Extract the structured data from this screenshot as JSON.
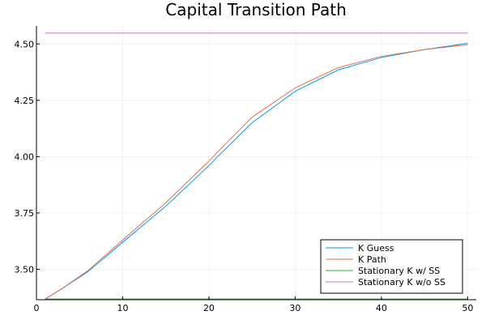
{
  "chart_data": {
    "type": "line",
    "title": "Capital Transition Path",
    "xlabel": "",
    "ylabel": "",
    "xlim": [
      0,
      51
    ],
    "ylim": [
      3.365,
      4.58
    ],
    "x_ticks": [
      0,
      10,
      20,
      30,
      40,
      50
    ],
    "y_ticks": [
      3.5,
      3.75,
      4.0,
      4.25,
      4.5
    ],
    "x_tick_labels": [
      "0",
      "10",
      "20",
      "30",
      "40",
      "50"
    ],
    "y_tick_labels": [
      "3.50",
      "3.75",
      "4.00",
      "4.25",
      "4.50"
    ],
    "grid": true,
    "legend_position": "bottom-right",
    "x": [
      1,
      3,
      6,
      10,
      15,
      20,
      21,
      25,
      30,
      35,
      40,
      45,
      50
    ],
    "series": [
      {
        "name": "K Guess",
        "color": "#009AFA",
        "values": [
          3.368,
          3.415,
          3.49,
          3.62,
          3.78,
          3.96,
          4.0,
          4.15,
          4.29,
          4.385,
          4.44,
          4.475,
          4.503
        ]
      },
      {
        "name": "K Path",
        "color": "#E26F46",
        "values": [
          3.368,
          3.415,
          3.495,
          3.63,
          3.795,
          3.98,
          4.02,
          4.175,
          4.305,
          4.395,
          4.445,
          4.475,
          4.497
        ]
      },
      {
        "name": "Stationary K w/ SS",
        "color": "#3EA44E",
        "values": [
          3.368,
          3.368,
          3.368,
          3.368,
          3.368,
          3.368,
          3.368,
          3.368,
          3.368,
          3.368,
          3.368,
          3.368,
          3.368
        ]
      },
      {
        "name": "Stationary K w/o SS",
        "color": "#C271D2",
        "values": [
          4.548,
          4.548,
          4.548,
          4.548,
          4.548,
          4.548,
          4.548,
          4.548,
          4.548,
          4.548,
          4.548,
          4.548,
          4.548
        ]
      }
    ]
  }
}
